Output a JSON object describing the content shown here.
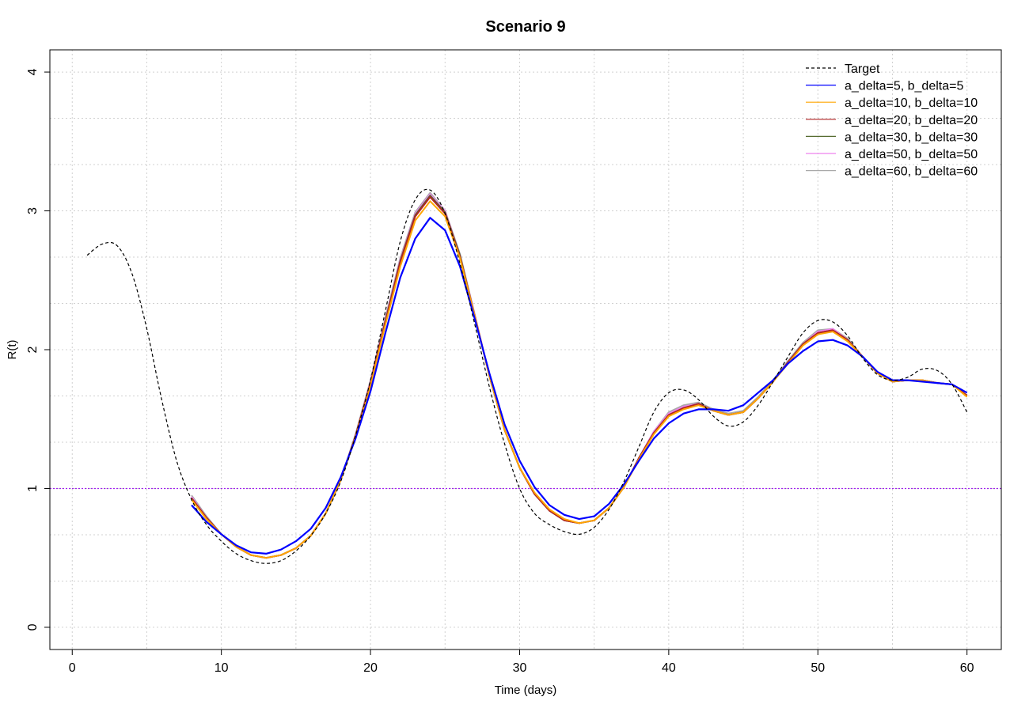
{
  "chart_data": {
    "type": "line",
    "title": "Scenario 9",
    "xlabel": "Time (days)",
    "ylabel": "R(t)",
    "xlim": [
      -1.5,
      62.3
    ],
    "ylim": [
      -0.16,
      4.16
    ],
    "x_ticks": [
      0,
      10,
      20,
      30,
      40,
      50,
      60
    ],
    "y_ticks": [
      0,
      1,
      2,
      3,
      4
    ],
    "grid": true,
    "legend_position": "top-right",
    "reference_line": {
      "y": 1,
      "color": "#a020f0"
    },
    "target": {
      "name": "Target",
      "color": "#000000",
      "x": [
        1,
        2,
        3,
        4,
        5,
        6,
        7,
        8,
        9,
        10,
        11,
        12,
        13,
        14,
        15,
        16,
        17,
        18,
        19,
        20,
        21,
        22,
        23,
        24,
        25,
        26,
        27,
        28,
        29,
        30,
        31,
        32,
        33,
        34,
        35,
        36,
        37,
        38,
        39,
        40,
        41,
        42,
        43,
        44,
        45,
        46,
        47,
        48,
        49,
        50,
        51,
        52,
        53,
        54,
        55,
        56,
        57,
        58,
        59,
        60
      ],
      "y": [
        2.68,
        2.76,
        2.75,
        2.55,
        2.15,
        1.64,
        1.2,
        0.92,
        0.74,
        0.62,
        0.53,
        0.48,
        0.46,
        0.48,
        0.55,
        0.66,
        0.82,
        1.05,
        1.38,
        1.78,
        2.28,
        2.78,
        3.08,
        3.15,
        2.98,
        2.62,
        2.18,
        1.72,
        1.32,
        1.0,
        0.82,
        0.74,
        0.69,
        0.67,
        0.72,
        0.85,
        1.05,
        1.3,
        1.55,
        1.69,
        1.71,
        1.64,
        1.52,
        1.45,
        1.48,
        1.6,
        1.77,
        1.95,
        2.12,
        2.21,
        2.2,
        2.1,
        1.94,
        1.82,
        1.78,
        1.8,
        1.86,
        1.85,
        1.75,
        1.55
      ]
    },
    "x": [
      8,
      9,
      10,
      11,
      12,
      13,
      14,
      15,
      16,
      17,
      18,
      19,
      20,
      21,
      22,
      23,
      24,
      25,
      26,
      27,
      28,
      29,
      30,
      31,
      32,
      33,
      34,
      35,
      36,
      37,
      38,
      39,
      40,
      41,
      42,
      43,
      44,
      45,
      46,
      47,
      48,
      49,
      50,
      51,
      52,
      53,
      54,
      55,
      56,
      57,
      58,
      59,
      60
    ],
    "series": [
      {
        "name": "a_delta=5, b_delta=5",
        "color": "#0000ff",
        "values": [
          0.88,
          0.76,
          0.67,
          0.59,
          0.54,
          0.53,
          0.56,
          0.62,
          0.71,
          0.86,
          1.08,
          1.36,
          1.7,
          2.12,
          2.52,
          2.8,
          2.95,
          2.86,
          2.6,
          2.22,
          1.82,
          1.46,
          1.2,
          1.01,
          0.88,
          0.81,
          0.78,
          0.8,
          0.89,
          1.03,
          1.2,
          1.36,
          1.47,
          1.54,
          1.57,
          1.57,
          1.56,
          1.6,
          1.69,
          1.78,
          1.9,
          1.99,
          2.06,
          2.07,
          2.03,
          1.95,
          1.84,
          1.78,
          1.78,
          1.77,
          1.76,
          1.75,
          1.69
        ]
      },
      {
        "name": "a_delta=10, b_delta=10",
        "color": "#ffa500",
        "values": [
          0.92,
          0.78,
          0.67,
          0.58,
          0.52,
          0.5,
          0.52,
          0.57,
          0.66,
          0.82,
          1.06,
          1.37,
          1.74,
          2.18,
          2.6,
          2.93,
          3.07,
          2.96,
          2.66,
          2.24,
          1.8,
          1.42,
          1.15,
          0.97,
          0.85,
          0.78,
          0.75,
          0.77,
          0.86,
          1.01,
          1.21,
          1.39,
          1.52,
          1.57,
          1.6,
          1.56,
          1.53,
          1.55,
          1.65,
          1.77,
          1.9,
          2.03,
          2.11,
          2.13,
          2.06,
          1.95,
          1.83,
          1.77,
          1.78,
          1.78,
          1.76,
          1.75,
          1.66
        ]
      },
      {
        "name": "a_delta=20, b_delta=20",
        "color": "#b22222",
        "values": [
          0.93,
          0.79,
          0.67,
          0.58,
          0.52,
          0.5,
          0.52,
          0.57,
          0.66,
          0.82,
          1.06,
          1.38,
          1.76,
          2.2,
          2.63,
          2.96,
          3.1,
          2.98,
          2.67,
          2.24,
          1.8,
          1.42,
          1.15,
          0.96,
          0.84,
          0.77,
          0.75,
          0.77,
          0.86,
          1.01,
          1.22,
          1.4,
          1.53,
          1.58,
          1.61,
          1.56,
          1.53,
          1.55,
          1.65,
          1.77,
          1.91,
          2.04,
          2.12,
          2.14,
          2.07,
          1.95,
          1.83,
          1.77,
          1.78,
          1.78,
          1.76,
          1.75,
          1.67
        ]
      },
      {
        "name": "a_delta=30, b_delta=30",
        "color": "#556b2f",
        "values": [
          0.93,
          0.79,
          0.67,
          0.58,
          0.52,
          0.5,
          0.52,
          0.57,
          0.66,
          0.82,
          1.06,
          1.38,
          1.76,
          2.21,
          2.64,
          2.97,
          3.11,
          2.99,
          2.68,
          2.24,
          1.8,
          1.42,
          1.15,
          0.96,
          0.84,
          0.77,
          0.75,
          0.77,
          0.86,
          1.01,
          1.22,
          1.4,
          1.53,
          1.58,
          1.61,
          1.56,
          1.53,
          1.55,
          1.65,
          1.77,
          1.91,
          2.04,
          2.12,
          2.14,
          2.07,
          1.95,
          1.83,
          1.77,
          1.78,
          1.78,
          1.76,
          1.75,
          1.67
        ]
      },
      {
        "name": "a_delta=50, b_delta=50",
        "color": "#ee82ee",
        "values": [
          0.94,
          0.79,
          0.67,
          0.58,
          0.52,
          0.5,
          0.52,
          0.57,
          0.66,
          0.82,
          1.06,
          1.38,
          1.77,
          2.22,
          2.65,
          2.98,
          3.12,
          3.0,
          2.68,
          2.25,
          1.8,
          1.42,
          1.15,
          0.96,
          0.84,
          0.77,
          0.75,
          0.77,
          0.86,
          1.01,
          1.22,
          1.41,
          1.54,
          1.59,
          1.61,
          1.56,
          1.53,
          1.55,
          1.65,
          1.77,
          1.91,
          2.04,
          2.13,
          2.15,
          2.07,
          1.95,
          1.83,
          1.77,
          1.78,
          1.78,
          1.76,
          1.75,
          1.67
        ]
      },
      {
        "name": "a_delta=60, b_delta=60",
        "color": "#a9a9a9",
        "values": [
          0.95,
          0.8,
          0.67,
          0.58,
          0.52,
          0.5,
          0.52,
          0.57,
          0.66,
          0.82,
          1.06,
          1.39,
          1.78,
          2.23,
          2.66,
          2.99,
          3.13,
          3.0,
          2.69,
          2.25,
          1.8,
          1.42,
          1.15,
          0.96,
          0.84,
          0.77,
          0.75,
          0.77,
          0.86,
          1.01,
          1.22,
          1.41,
          1.55,
          1.6,
          1.62,
          1.57,
          1.54,
          1.56,
          1.66,
          1.78,
          1.92,
          2.05,
          2.14,
          2.15,
          2.08,
          1.95,
          1.83,
          1.77,
          1.78,
          1.78,
          1.76,
          1.75,
          1.67
        ]
      }
    ]
  }
}
